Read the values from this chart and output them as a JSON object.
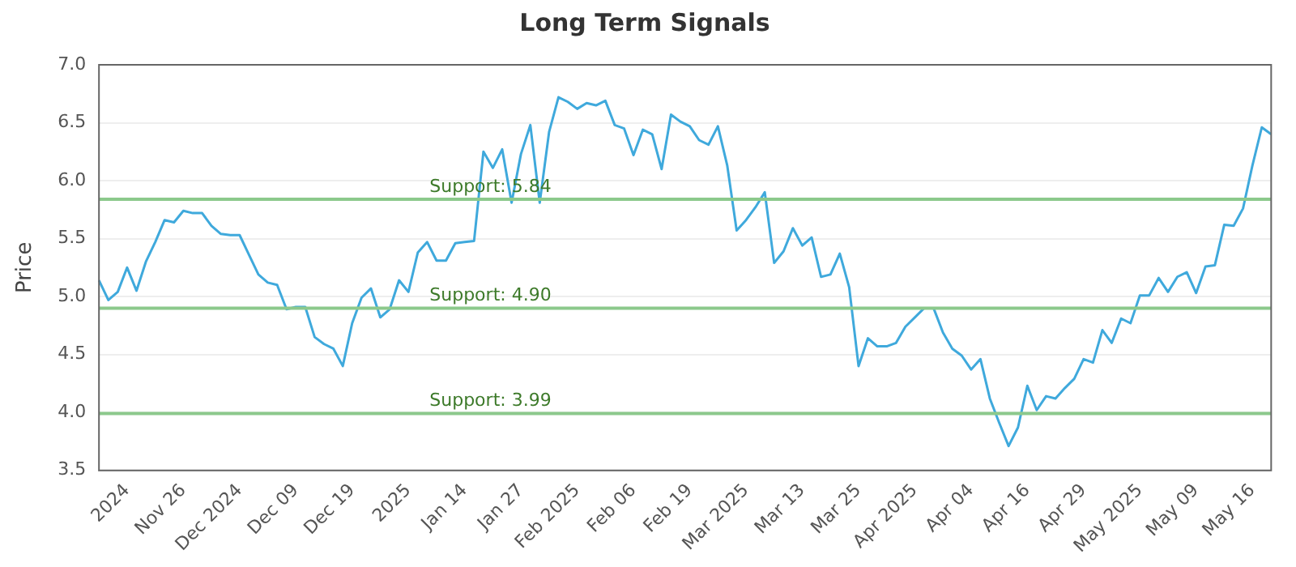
{
  "chart_data": {
    "type": "line",
    "title": "Long Term Signals",
    "ylabel": "Price",
    "categories": [
      null,
      null,
      null,
      "2024",
      null,
      null,
      null,
      null,
      null,
      "Nov 26",
      null,
      null,
      null,
      null,
      null,
      "Dec 2024",
      null,
      null,
      null,
      null,
      null,
      "Dec 09",
      null,
      null,
      null,
      null,
      null,
      "Dec 19",
      null,
      null,
      null,
      null,
      null,
      "2025",
      null,
      null,
      null,
      null,
      null,
      "Jan 14",
      null,
      null,
      null,
      null,
      null,
      "Jan 27",
      null,
      null,
      null,
      null,
      null,
      "Feb 2025",
      null,
      null,
      null,
      null,
      null,
      "Feb 06",
      null,
      null,
      null,
      null,
      null,
      "Feb 19",
      null,
      null,
      null,
      null,
      null,
      "Mar 2025",
      null,
      null,
      null,
      null,
      null,
      "Mar 13",
      null,
      null,
      null,
      null,
      null,
      "Mar 25",
      null,
      null,
      null,
      null,
      null,
      "Apr 2025",
      null,
      null,
      null,
      null,
      null,
      "Apr 04",
      null,
      null,
      null,
      null,
      null,
      "Apr 16",
      null,
      null,
      null,
      null,
      null,
      "Apr 29",
      null,
      null,
      null,
      null,
      null,
      "May 2025",
      null,
      null,
      null,
      null,
      null,
      "May 09",
      null,
      null,
      null,
      null,
      null,
      "May 16",
      null,
      null
    ],
    "series": [
      {
        "color": "#3fa9dc",
        "values": [
          5.14,
          4.97,
          5.04,
          5.25,
          5.05,
          5.3,
          5.47,
          5.66,
          5.64,
          5.74,
          5.72,
          5.72,
          5.61,
          5.54,
          5.53,
          5.53,
          5.36,
          5.19,
          5.12,
          5.1,
          4.89,
          4.91,
          4.91,
          4.65,
          4.59,
          4.55,
          4.4,
          4.77,
          4.99,
          5.07,
          4.82,
          4.89,
          5.14,
          5.04,
          5.38,
          5.47,
          5.31,
          5.31,
          5.46,
          5.47,
          5.48,
          6.25,
          6.11,
          6.27,
          5.81,
          6.23,
          6.48,
          5.81,
          6.42,
          6.72,
          6.68,
          6.62,
          6.67,
          6.65,
          6.69,
          6.48,
          6.45,
          6.22,
          6.44,
          6.4,
          6.1,
          6.57,
          6.51,
          6.47,
          6.35,
          6.31,
          6.47,
          6.13,
          5.57,
          5.66,
          5.77,
          5.9,
          5.29,
          5.39,
          5.59,
          5.44,
          5.51,
          5.17,
          5.19,
          5.37,
          5.08,
          4.4,
          4.64,
          4.57,
          4.57,
          4.6,
          4.74,
          4.82,
          4.9,
          4.9,
          4.69,
          4.55,
          4.49,
          4.37,
          4.46,
          4.12,
          3.91,
          3.71,
          3.87,
          4.23,
          4.02,
          4.14,
          4.12,
          4.21,
          4.29,
          4.46,
          4.43,
          4.71,
          4.6,
          4.81,
          4.77,
          5.01,
          5.01,
          5.16,
          5.04,
          5.17,
          5.21,
          5.03,
          5.26,
          5.27,
          5.62,
          5.61,
          5.76,
          6.13,
          6.46,
          6.4
        ]
      }
    ],
    "ylim": [
      3.5,
      7.0
    ],
    "yticks": [
      {
        "value": 3.5,
        "label": "3.5"
      },
      {
        "value": 4,
        "label": "4.0"
      },
      {
        "value": 4.5,
        "label": "4.5"
      },
      {
        "value": 5,
        "label": "5.0"
      },
      {
        "value": 5.5,
        "label": "5.5"
      },
      {
        "value": 6,
        "label": "6.0"
      },
      {
        "value": 6.5,
        "label": "6.5"
      },
      {
        "value": 7,
        "label": "7.0"
      }
    ],
    "ref_lines": [
      {
        "axis": "y",
        "value": 5.84,
        "label": "Support: 5.84",
        "color": "#8cc98c"
      },
      {
        "axis": "y",
        "value": 4.9,
        "label": "Support: 4.90",
        "color": "#8cc98c"
      },
      {
        "axis": "y",
        "value": 3.99,
        "label": "Support: 3.99",
        "color": "#8cc98c"
      }
    ],
    "grid": "y",
    "legend": false,
    "marker": "none",
    "line_style": "solid"
  }
}
